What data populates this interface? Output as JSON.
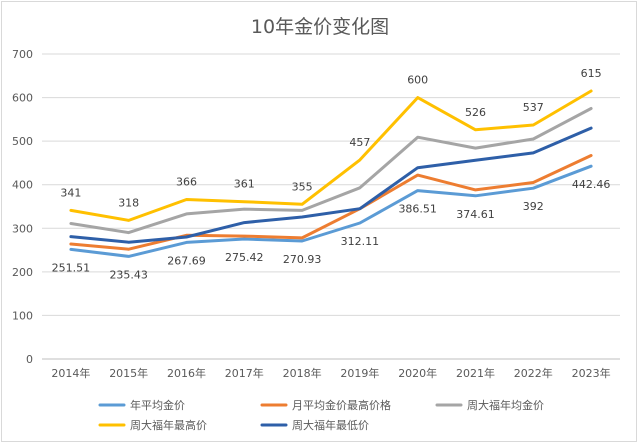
{
  "chart_data": {
    "type": "line",
    "title": "10年金价变化图",
    "xlabel": "",
    "ylabel": "",
    "ylim": [
      0,
      700
    ],
    "yticks": [
      0,
      100,
      200,
      300,
      400,
      500,
      600,
      700
    ],
    "categories": [
      "2014年",
      "2015年",
      "2016年",
      "2017年",
      "2018年",
      "2019年",
      "2020年",
      "2021年",
      "2022年",
      "2023年"
    ],
    "grid": true,
    "legend_position": "bottom",
    "series": [
      {
        "name": "年平均金价",
        "color": "#5B9BD5",
        "values": [
          251.51,
          235.43,
          267.69,
          275.42,
          270.93,
          312.11,
          386.51,
          374.61,
          392,
          442.46
        ],
        "labels": [
          "251.51",
          "235.43",
          "267.69",
          "275.42",
          "270.93",
          "312.11",
          "386.51",
          "374.61",
          "392",
          "442.46"
        ]
      },
      {
        "name": "月平均金价最高价格",
        "color": "#ED7D31",
        "values": [
          264,
          252,
          284,
          282,
          278,
          345,
          422,
          388,
          405,
          467
        ],
        "labels": null
      },
      {
        "name": "周大福年均金价",
        "color": "#A5A5A5",
        "values": [
          311,
          290,
          333,
          344,
          341,
          393,
          509,
          484,
          505,
          575
        ],
        "labels": null
      },
      {
        "name": "周大福年最高价",
        "color": "#FFC000",
        "values": [
          341,
          318,
          366,
          361,
          355,
          457,
          600,
          526,
          537,
          615
        ],
        "labels": [
          "341",
          "318",
          "366",
          "361",
          "355",
          "457",
          "600",
          "526",
          "537",
          "615"
        ]
      },
      {
        "name": "周大福年最低价",
        "color": "#2E5FA8",
        "values": [
          281,
          268,
          280,
          313,
          326,
          345,
          439,
          456,
          473,
          530
        ],
        "labels": null
      }
    ]
  }
}
